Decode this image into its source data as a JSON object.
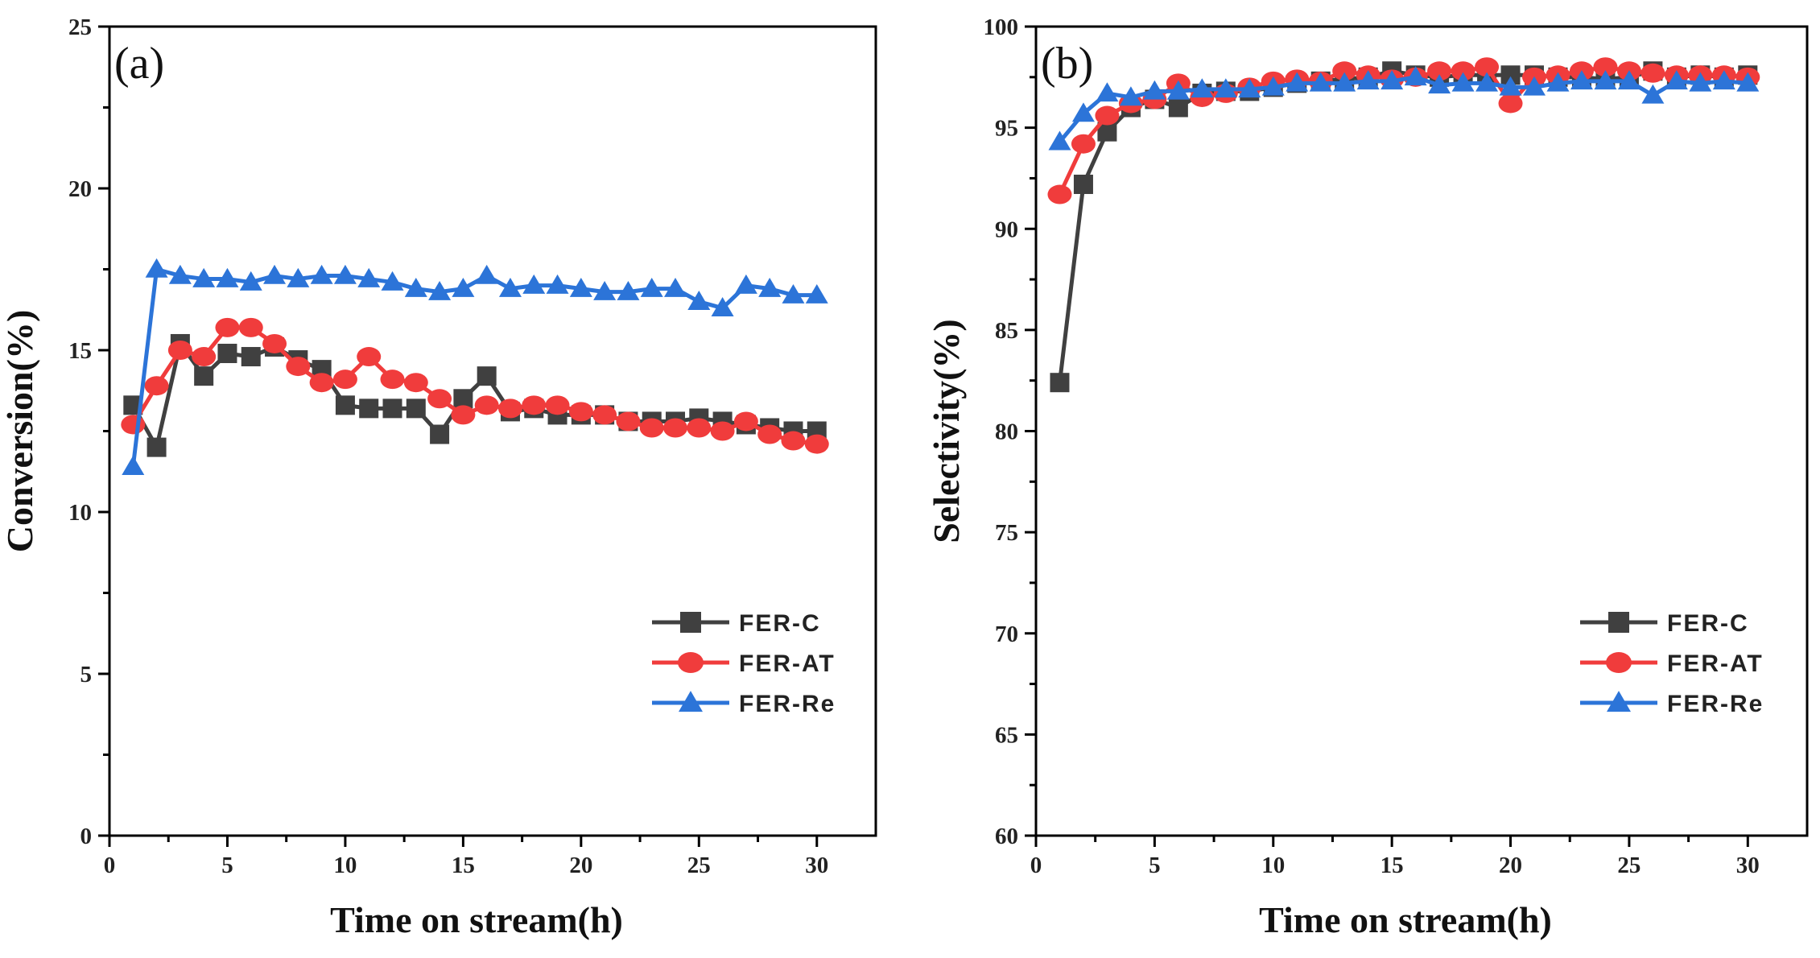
{
  "chart_data": [
    {
      "type": "line",
      "panel_label": "(a)",
      "title": "",
      "xlabel": "Time on stream(h)",
      "ylabel": "Conversion(%)",
      "xlim": [
        0,
        32.5
      ],
      "ylim": [
        0,
        25
      ],
      "xticks": [
        0,
        5,
        10,
        15,
        20,
        25,
        30
      ],
      "yticks": [
        0,
        5,
        10,
        15,
        20,
        25
      ],
      "x": [
        1,
        2,
        3,
        4,
        5,
        6,
        7,
        8,
        9,
        10,
        11,
        12,
        13,
        14,
        15,
        16,
        17,
        18,
        19,
        20,
        21,
        22,
        23,
        24,
        25,
        26,
        27,
        28,
        29,
        30
      ],
      "legend_position": "lower-right",
      "series": [
        {
          "name": "FER-C",
          "color": "#404040",
          "marker": "square",
          "values": [
            13.3,
            12.0,
            15.2,
            14.2,
            14.9,
            14.8,
            15.1,
            14.7,
            14.4,
            13.3,
            13.2,
            13.2,
            13.2,
            12.4,
            13.5,
            14.2,
            13.1,
            13.2,
            13.0,
            13.0,
            13.0,
            12.8,
            12.8,
            12.8,
            12.9,
            12.8,
            12.7,
            12.6,
            12.5,
            12.5
          ]
        },
        {
          "name": "FER-AT",
          "color": "#f03c3c",
          "marker": "circle",
          "values": [
            12.7,
            13.9,
            15.0,
            14.8,
            15.7,
            15.7,
            15.2,
            14.5,
            14.0,
            14.1,
            14.8,
            14.1,
            14.0,
            13.5,
            13.0,
            13.3,
            13.2,
            13.3,
            13.3,
            13.1,
            13.0,
            12.8,
            12.6,
            12.6,
            12.6,
            12.5,
            12.8,
            12.4,
            12.2,
            12.1
          ]
        },
        {
          "name": "FER-Re",
          "color": "#2c74d8",
          "marker": "triangle",
          "values": [
            11.4,
            17.5,
            17.3,
            17.2,
            17.2,
            17.1,
            17.3,
            17.2,
            17.3,
            17.3,
            17.2,
            17.1,
            16.9,
            16.8,
            16.9,
            17.3,
            16.9,
            17.0,
            17.0,
            16.9,
            16.8,
            16.8,
            16.9,
            16.9,
            16.5,
            16.3,
            17.0,
            16.9,
            16.7,
            16.7
          ]
        }
      ]
    },
    {
      "type": "line",
      "panel_label": "(b)",
      "title": "",
      "xlabel": "Time on stream(h)",
      "ylabel": "Selectivity(%)",
      "xlim": [
        0,
        32.5
      ],
      "ylim": [
        60,
        100
      ],
      "xticks": [
        0,
        5,
        10,
        15,
        20,
        25,
        30
      ],
      "yticks": [
        60,
        65,
        70,
        75,
        80,
        85,
        90,
        95,
        100
      ],
      "x": [
        1,
        2,
        3,
        4,
        5,
        6,
        7,
        8,
        9,
        10,
        11,
        12,
        13,
        14,
        15,
        16,
        17,
        18,
        19,
        20,
        21,
        22,
        23,
        24,
        25,
        26,
        27,
        28,
        29,
        30
      ],
      "legend_position": "lower-right",
      "series": [
        {
          "name": "FER-C",
          "color": "#404040",
          "marker": "square",
          "values": [
            82.4,
            92.2,
            94.8,
            96.0,
            96.4,
            96.0,
            96.7,
            96.8,
            96.8,
            97.0,
            97.2,
            97.3,
            97.4,
            97.5,
            97.8,
            97.6,
            97.5,
            97.6,
            97.6,
            97.6,
            97.6,
            97.5,
            97.5,
            97.4,
            97.5,
            97.8,
            97.5,
            97.6,
            97.5,
            97.6
          ]
        },
        {
          "name": "FER-AT",
          "color": "#f03c3c",
          "marker": "circle",
          "values": [
            91.7,
            94.2,
            95.6,
            96.2,
            96.4,
            97.2,
            96.5,
            96.7,
            97.0,
            97.3,
            97.4,
            97.3,
            97.8,
            97.6,
            97.4,
            97.5,
            97.8,
            97.8,
            98.0,
            96.2,
            97.5,
            97.6,
            97.8,
            98.0,
            97.8,
            97.7,
            97.6,
            97.6,
            97.6,
            97.5
          ]
        },
        {
          "name": "FER-Re",
          "color": "#2c74d8",
          "marker": "triangle",
          "values": [
            94.3,
            95.7,
            96.7,
            96.5,
            96.8,
            96.8,
            96.9,
            96.9,
            96.9,
            97.0,
            97.2,
            97.2,
            97.2,
            97.3,
            97.3,
            97.5,
            97.1,
            97.2,
            97.2,
            97.0,
            97.0,
            97.2,
            97.3,
            97.3,
            97.3,
            96.6,
            97.3,
            97.2,
            97.3,
            97.2
          ]
        }
      ]
    }
  ]
}
